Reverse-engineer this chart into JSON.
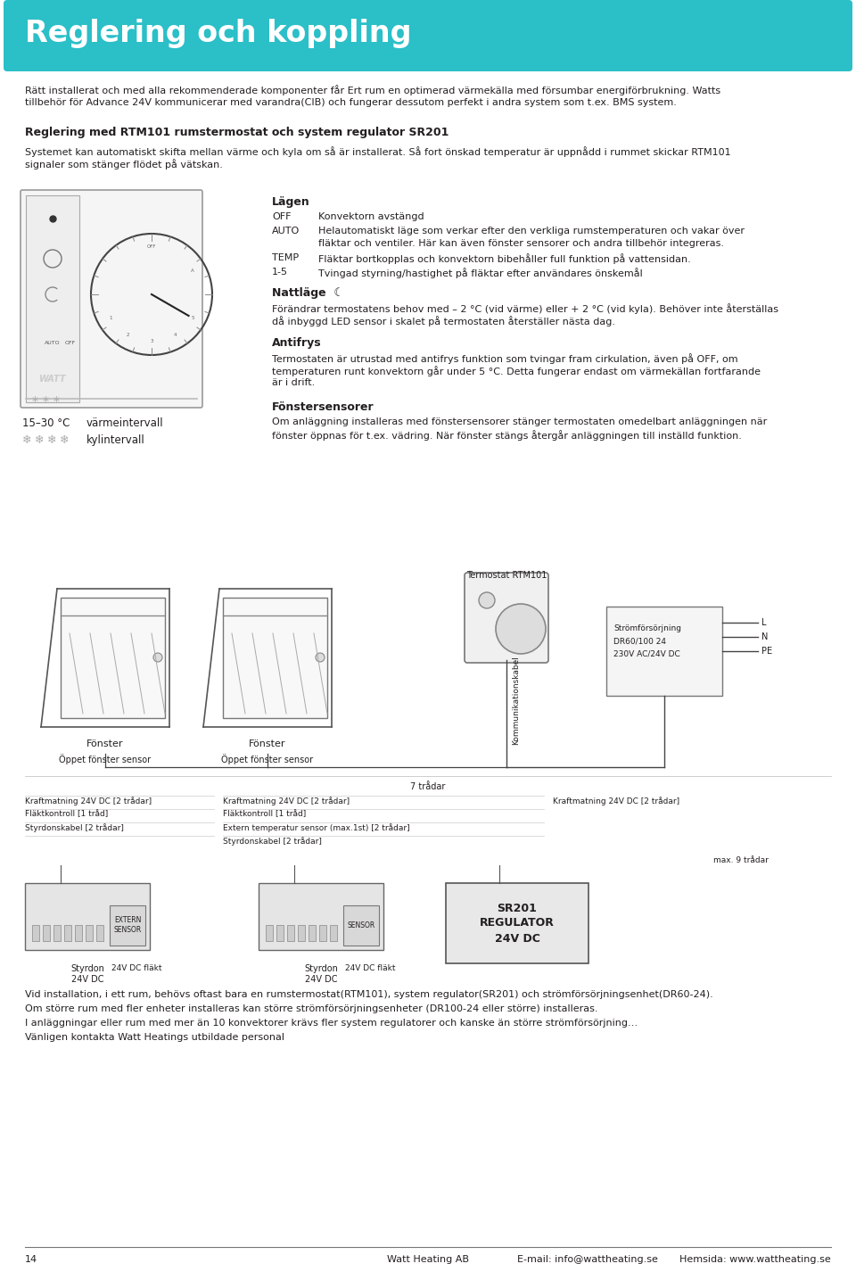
{
  "header_text": "Reglering och koppling",
  "header_bg": "#2bbfc8",
  "header_text_color": "#ffffff",
  "body_bg": "#ffffff",
  "text_color": "#231f20",
  "gray_line": "#aaaaaa",
  "intro_line1": "Rätt installerat och med alla rekommenderade komponenter får Ert rum en optimerad värmekälla med försumbar energiförbrukning. Watts",
  "intro_line2": "tillbehör för Advance 24V kommunicerar med varandra(CIB) och fungerar dessutom perfekt i andra system som t.ex. BMS system.",
  "section_title": "Reglering med RTM101 rumstermostat och system regulator SR201",
  "sec_line1": "Systemet kan automatiskt skifta mellan värme och kyla om så är installerat. Så fort önskad temperatur är uppnådd i rummet skickar RTM101",
  "sec_line2": "signaler som stänger flödet på vätskan.",
  "lagen_title": "Lägen",
  "off_key": "OFF",
  "off_val": "Konvektorn avstängd",
  "auto_key": "AUTO",
  "auto_val1": "Helautomatiskt läge som verkar efter den verkliga rumstemperaturen och vakar över",
  "auto_val2": "fläktar och ventiler. Här kan även fönster sensorer och andra tillbehör integreras.",
  "temp_key": "TEMP",
  "temp_val": "Fläktar bortkopplas och konvektorn bibehåller full funktion på vattensidan.",
  "one5_key": "1-5",
  "one5_val": "Tvingad styrning/hastighet på fläktar efter användares önskemål",
  "nattlage_title": "Nattläge",
  "natt_line1": "Förändrar termostatens behov med – 2 °C (vid värme) eller + 2 °C (vid kyla). Behöver inte återställas",
  "natt_line2": "då inbyggd LED sensor i skalet på termostaten återställer nästa dag.",
  "antifrys_title": "Antifrys",
  "anti_line1": "Termostaten är utrustad med antifrys funktion som tvingar fram cirkulation, även på OFF, om",
  "anti_line2": "temperaturen runt konvektorn går under 5 °C. Detta fungerar endast om värmekällan fortfarande",
  "anti_line3": "är i drift.",
  "fons_title": "Fönstersensorer",
  "fons_line1": "Om anläggning installeras med fönstersensorer stänger termostaten omedelbart anläggningen när",
  "fons_line2": "fönster öppnas för t.ex. vädring. När fönster stängs återgår anläggningen till inställd funktion.",
  "temp_range": "15–30 °C",
  "temp_range_label": "värmeintervall",
  "snow_label": "kylintervall",
  "termostat_label": "Termostat RTM101",
  "komm_label": "Kommunikationskabel",
  "pwr_line1": "Strömförsörjning",
  "pwr_line2": "DR60/100 24",
  "pwr_line3": "230V AC/24V DC",
  "L_label": "L",
  "N_label": "N",
  "PE_label": "PE",
  "fonster_label": "Fönster",
  "sensor_label": "Öppet fönster sensor",
  "w7_label": "7 trådar",
  "kabel_lft1": "Kraftmatning 24V DC [2 trådar]",
  "kabel_lft2": "Fläktkontroll [1 tråd]",
  "kabel_lft3": "Styrdonskabel [2 trådar]",
  "kabel_mid1": "Kraftmatning 24V DC [2 trådar]",
  "kabel_mid2": "Fläktkontroll [1 tråd]",
  "kabel_mid3": "Extern temperatur sensor (max.1st) [2 trådar]",
  "kabel_mid4": "Styrdonskabel [2 trådar]",
  "kabel_rgt1": "Kraftmatning 24V DC [2 trådar]",
  "max9_label": "max. 9 trådar",
  "styrdon_label": "Styrdon\n24V DC",
  "extern_label": "EXTERN\nSENSOR",
  "fläkt_label": "24V DC fläkt",
  "sr201_label": "SR201\nREGULATOR\n24V DC",
  "sensor2_label": "SENSOR",
  "fläkt2_label": "24V DC fläkt",
  "footer1": "Vid installation, i ett rum, behövs oftast bara en rumstermostat(RTM101), system regulator(SR201) och strömförsörjningsenhet(DR60-24).",
  "footer2": "Om större rum med fler enheter installeras kan större strömförsörjningsenheter (DR100-24 eller större) installeras.",
  "footer3": "I anläggningar eller rum med mer än 10 konvektorer krävs fler system regulatorer och kanske än större strömförsörjning…",
  "footer4": "Vänligen kontakta Watt Heatings utbildade personal",
  "page_num": "14",
  "company": "Watt Heating AB",
  "email": "E-mail: info@wattheating.se",
  "web": "Hemsida: www.wattheating.se"
}
